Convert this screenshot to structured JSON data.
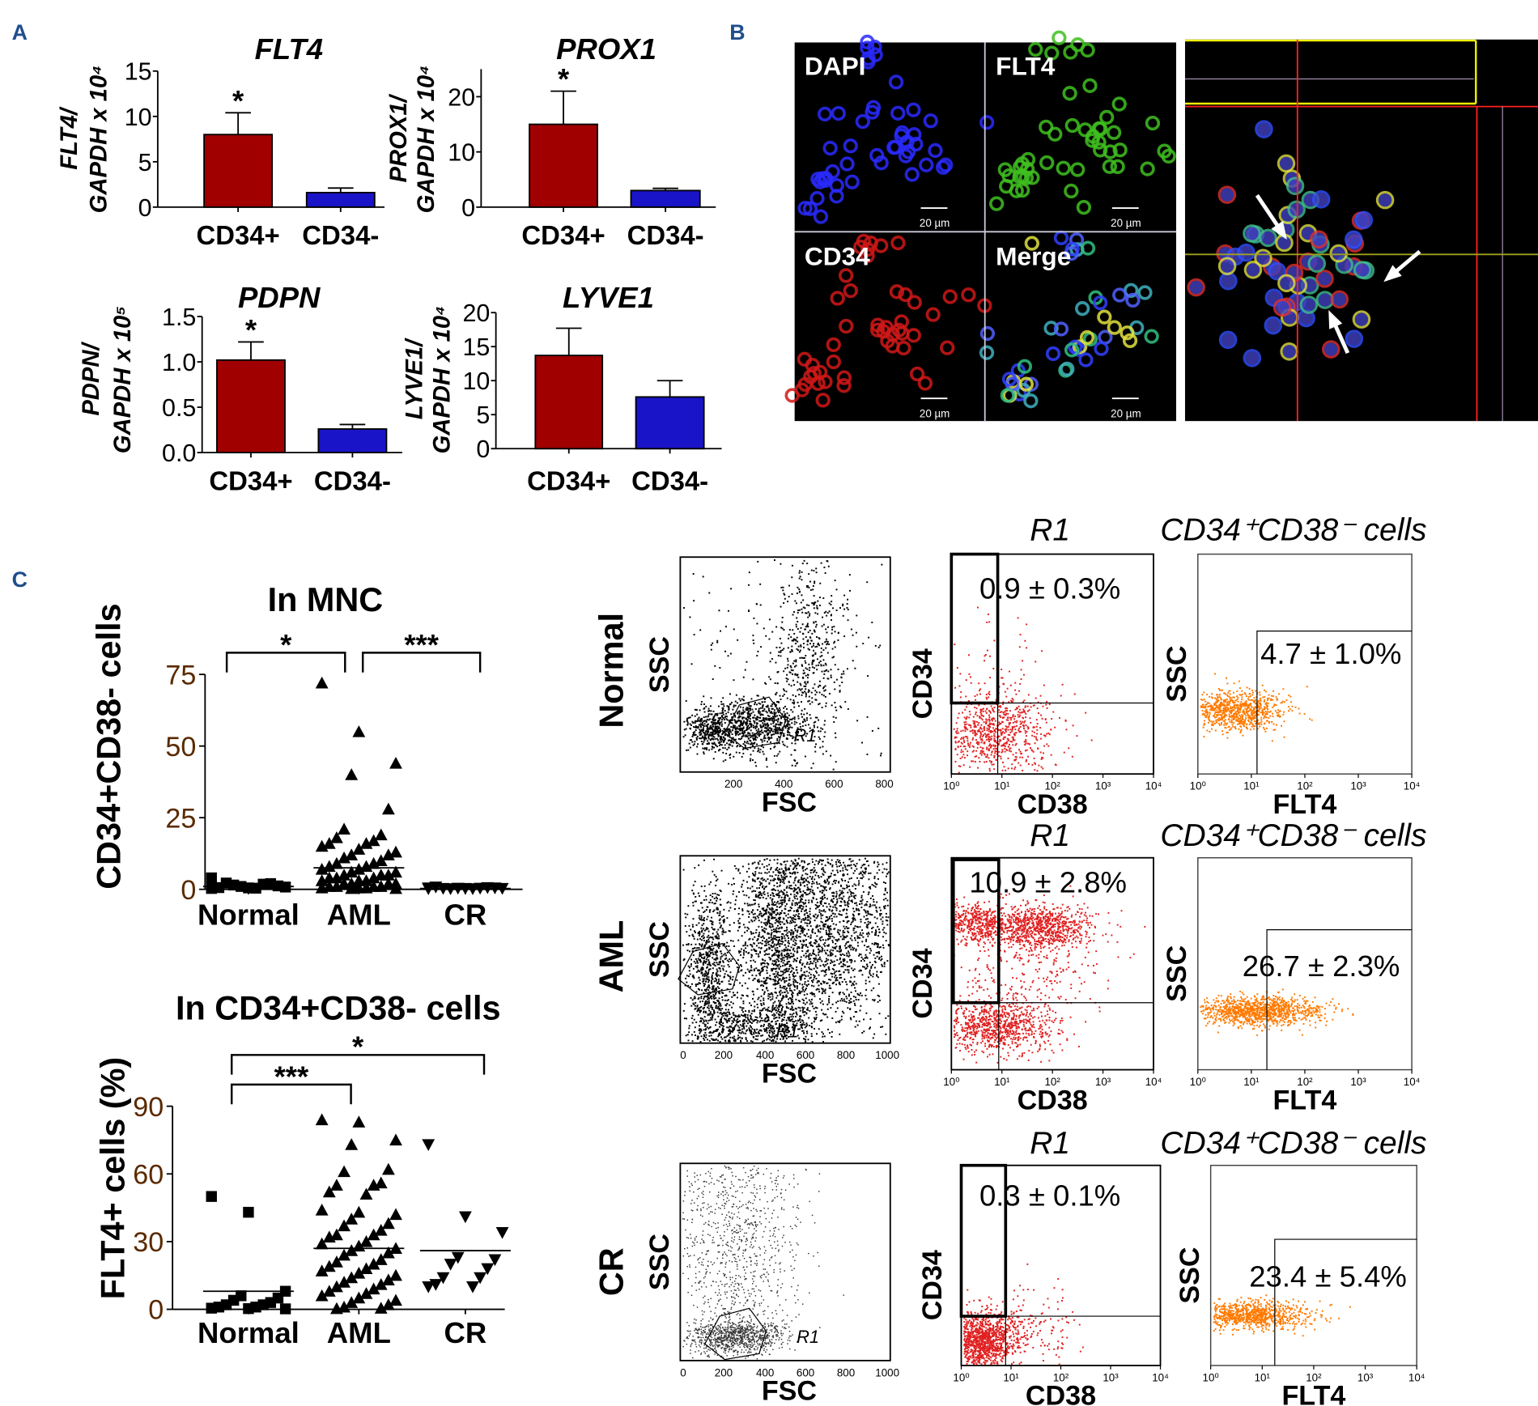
{
  "panel_labels": {
    "a": "A",
    "b": "B",
    "c": "C"
  },
  "colors": {
    "panel_label": "#1f4e8c",
    "bar_cd34_pos": "#a00000",
    "bar_cd34_neg": "#1a14c8",
    "tick_label": "#5a2a00",
    "flow_red": "#e02020",
    "flow_orange": "#ff7a00"
  },
  "chart_data": [
    {
      "type": "bar",
      "title": "FLT4",
      "ylabel_line1": "FLT4/",
      "ylabel_line2": "GAPDH x 10⁴",
      "categories": [
        "CD34+",
        "CD34-"
      ],
      "values": [
        8.0,
        1.6
      ],
      "error": [
        2.4,
        0.5
      ],
      "ylim": [
        0,
        15
      ],
      "yticks": [
        "0",
        "5",
        "10",
        "15"
      ],
      "ytick_values": [
        0,
        5,
        10,
        15
      ],
      "significance": [
        "*",
        ""
      ]
    },
    {
      "type": "bar",
      "title": "PROX1",
      "ylabel_line1": "PROX1/",
      "ylabel_line2": "GAPDH x 10⁴",
      "categories": [
        "CD34+",
        "CD34-"
      ],
      "values": [
        15.0,
        3.0
      ],
      "error": [
        6.0,
        0.4
      ],
      "ylim": [
        0,
        25
      ],
      "yticks": [
        "0",
        "10",
        "20"
      ],
      "ytick_values": [
        0,
        10,
        20
      ],
      "significance": [
        "*",
        ""
      ]
    },
    {
      "type": "bar",
      "title": "PDPN",
      "ylabel_line1": "PDPN/",
      "ylabel_line2": "GAPDH x 10⁵",
      "categories": [
        "CD34+",
        "CD34-"
      ],
      "values": [
        1.02,
        0.26
      ],
      "error": [
        0.2,
        0.05
      ],
      "ylim": [
        0,
        1.5
      ],
      "yticks": [
        "0.0",
        "0.5",
        "1.0",
        "1.5"
      ],
      "ytick_values": [
        0,
        0.5,
        1.0,
        1.5
      ],
      "significance": [
        "*",
        ""
      ]
    },
    {
      "type": "bar",
      "title": "LYVE1",
      "ylabel_line1": "LYVE1/",
      "ylabel_line2": "GAPDH x 10⁴",
      "categories": [
        "CD34+",
        "CD34-"
      ],
      "values": [
        13.7,
        7.6
      ],
      "error": [
        4.0,
        2.4
      ],
      "ylim": [
        0,
        20
      ],
      "yticks": [
        "0",
        "5",
        "10",
        "15",
        "20"
      ],
      "ytick_values": [
        0,
        5,
        10,
        15,
        20
      ],
      "significance": [
        "",
        ""
      ]
    },
    {
      "type": "scatter",
      "title": "In MNC",
      "ylabel": "CD34+CD38- cells",
      "categories": [
        "Normal",
        "AML",
        "CR"
      ],
      "ylim": [
        0,
        75
      ],
      "yticks": [
        "0",
        "25",
        "50",
        "75"
      ],
      "ytick_values": [
        0,
        25,
        50,
        75
      ],
      "series": [
        {
          "category": "Normal",
          "marker": "square",
          "mean": 1.0,
          "values": [
            0.3,
            0.5,
            0.8,
            1.0,
            1.2,
            1.5,
            2.0,
            2.2,
            1.8,
            0.6,
            0.4,
            4.0
          ]
        },
        {
          "category": "AML",
          "marker": "triangle-up",
          "mean": 7.5,
          "values": [
            72,
            55,
            44,
            40,
            28,
            21,
            19,
            18,
            17,
            16,
            16,
            15,
            14,
            13,
            12,
            12,
            11,
            10,
            9,
            9,
            8,
            8,
            7,
            7,
            6,
            6,
            5,
            5,
            5,
            4,
            4,
            4,
            3,
            3,
            3,
            2,
            2,
            2,
            2,
            1,
            1,
            1,
            1,
            0.5,
            0.5,
            0.5,
            0.3,
            0.3
          ]
        },
        {
          "category": "CR",
          "marker": "triangle-down",
          "mean": 0.3,
          "values": [
            0.2,
            0.3,
            0.3,
            0.4,
            0.5,
            0.2,
            0.6,
            0.3,
            0.4,
            0.8,
            0.2,
            0.5
          ]
        }
      ],
      "comparisons": [
        {
          "from": "Normal",
          "to": "AML",
          "label": "*"
        },
        {
          "from": "AML",
          "to": "CR",
          "label": "***"
        }
      ]
    },
    {
      "type": "scatter",
      "title": "In CD34+CD38- cells",
      "ylabel": "FLT4+ cells (%)",
      "categories": [
        "Normal",
        "AML",
        "CR"
      ],
      "ylim": [
        0,
        90
      ],
      "yticks": [
        "0",
        "30",
        "60",
        "90"
      ],
      "ytick_values": [
        0,
        30,
        60,
        90
      ],
      "series": [
        {
          "category": "Normal",
          "marker": "square",
          "mean": 8.0,
          "values": [
            50,
            43,
            8,
            6,
            5,
            4,
            3,
            2,
            2,
            1,
            1,
            0.5,
            0.3,
            0.2
          ]
        },
        {
          "category": "AML",
          "marker": "triangle-up",
          "mean": 27,
          "values": [
            84,
            83,
            75,
            73,
            62,
            61,
            56,
            55,
            55,
            52,
            51,
            44,
            43,
            42,
            40,
            38,
            37,
            35,
            33,
            33,
            32,
            30,
            29,
            28,
            27,
            26,
            25,
            24,
            22,
            21,
            20,
            19,
            18,
            17,
            16,
            15,
            14,
            13,
            12,
            11,
            10,
            9,
            8,
            7,
            6,
            5,
            4,
            3,
            2,
            1,
            0.5,
            0.3
          ]
        },
        {
          "category": "CR",
          "marker": "triangle-down",
          "mean": 26,
          "values": [
            73,
            41,
            34,
            23,
            22,
            20,
            18,
            14,
            14,
            11,
            10,
            10
          ]
        }
      ],
      "comparisons": [
        {
          "from": "Normal",
          "to": "AML",
          "label": "***"
        },
        {
          "from": "Normal",
          "to": "CR",
          "label": "*"
        }
      ]
    }
  ],
  "microscopy": {
    "channels": [
      "DAPI",
      "FLT4",
      "CD34",
      "Merge"
    ],
    "scale_bar": "20 µm"
  },
  "flow_cytometry": {
    "gate_header": "R1",
    "population_header": "CD34⁺CD38⁻ cells",
    "gate_name": "R1",
    "axis": {
      "fsc": "FSC",
      "ssc": "SSC",
      "cd34": "CD34",
      "cd38": "CD38",
      "flt4": "FLT4"
    },
    "log_ticks": [
      "10⁰",
      "10¹",
      "10²",
      "10³",
      "10⁴"
    ],
    "rows": [
      {
        "label": "Normal",
        "fsc_ticks": [
          "200",
          "400",
          "600",
          "800"
        ],
        "cd34_cd38_percent": "0.9 ± 0.3%",
        "flt4_percent": "4.7 ± 1.0%"
      },
      {
        "label": "AML",
        "fsc_ticks": [
          "0",
          "200",
          "400",
          "600",
          "800",
          "1000"
        ],
        "cd34_cd38_percent": "10.9 ± 2.8%",
        "flt4_percent": "26.7 ± 2.3%"
      },
      {
        "label": "CR",
        "fsc_ticks": [
          "0",
          "200",
          "400",
          "600",
          "800",
          "1000"
        ],
        "cd34_cd38_percent": "0.3 ± 0.1%",
        "flt4_percent": "23.4 ± 5.4%"
      }
    ]
  }
}
